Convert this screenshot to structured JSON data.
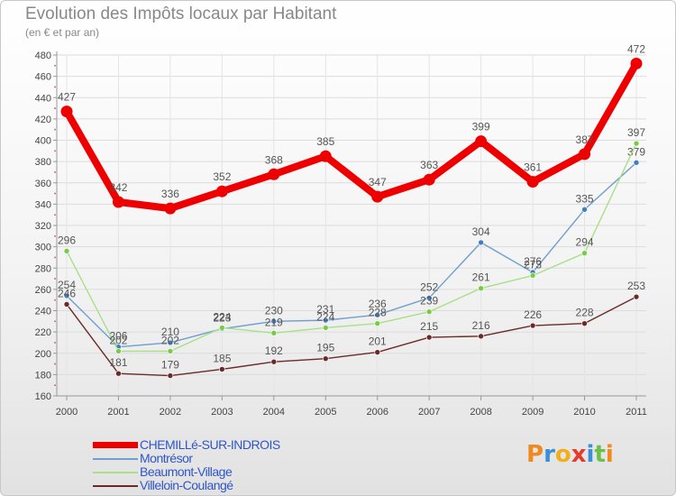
{
  "header": {
    "title": "Evolution des Impôts locaux par Habitant",
    "subtitle": "(en € et par an)"
  },
  "brand": {
    "logo_text": "Proxiti"
  },
  "chart_data": {
    "type": "line",
    "title": "Evolution des Impôts locaux par Habitant",
    "subtitle": "(en € et par an)",
    "xlabel": "",
    "ylabel": "",
    "x": [
      "2000",
      "2001",
      "2002",
      "2003",
      "2004",
      "2005",
      "2006",
      "2007",
      "2008",
      "2009",
      "2010",
      "2011"
    ],
    "ylim": [
      160,
      480
    ],
    "yticks": [
      160,
      180,
      200,
      220,
      240,
      260,
      280,
      300,
      320,
      340,
      360,
      380,
      400,
      420,
      440,
      460,
      480
    ],
    "grid": true,
    "legend_position": "bottom-left",
    "series": [
      {
        "name": "CHEMILLé-SUR-INDROIS",
        "color": "#ee0000",
        "point_color": "#ee0000",
        "label_color": "#555555",
        "emphasis": true,
        "values": [
          427,
          342,
          336,
          352,
          368,
          385,
          347,
          363,
          399,
          361,
          387,
          472
        ]
      },
      {
        "name": "Montrésor",
        "color": "#6f9fd0",
        "point_color": "#3f7fc0",
        "label_color": "#555555",
        "emphasis": false,
        "values": [
          254,
          206,
          210,
          223,
          230,
          231,
          236,
          252,
          304,
          276,
          335,
          379
        ]
      },
      {
        "name": "Beaumont-Village",
        "color": "#a8e086",
        "point_color": "#77cc44",
        "label_color": "#555555",
        "emphasis": false,
        "values": [
          296,
          202,
          202,
          224,
          219,
          224,
          228,
          239,
          261,
          273,
          294,
          397
        ]
      },
      {
        "name": "Villeloin-Coulangé",
        "color": "#6b2929",
        "point_color": "#6b2929",
        "label_color": "#555555",
        "emphasis": false,
        "values": [
          246,
          181,
          179,
          185,
          192,
          195,
          201,
          215,
          216,
          226,
          228,
          253
        ]
      }
    ]
  }
}
